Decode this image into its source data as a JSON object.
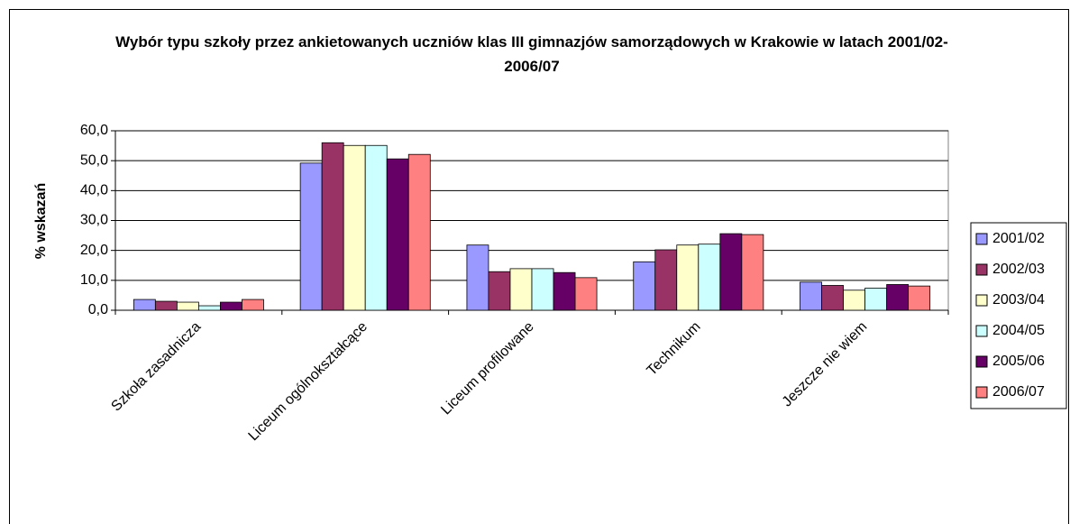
{
  "chart_data": {
    "type": "bar",
    "title": "Wybór typu szkoły przez ankietowanych uczniów klas III gimnazjów samorządowych w Krakowie w latach 2001/02-2006/07",
    "ylabel": "% wskazań",
    "categories": [
      "Szkoła zasadnicza",
      "Liceum ogólnokształcące",
      "Liceum profilowane",
      "Technikum",
      "Jeszcze nie wiem"
    ],
    "series": [
      {
        "name": "2001/02",
        "color": "#9999ff",
        "values": [
          3.6,
          49.2,
          21.8,
          16.2,
          9.4
        ]
      },
      {
        "name": "2002/03",
        "color": "#993366",
        "values": [
          3.0,
          56.0,
          12.9,
          20.2,
          8.3
        ]
      },
      {
        "name": "2003/04",
        "color": "#ffffcc",
        "values": [
          2.7,
          55.1,
          13.9,
          21.8,
          6.7
        ]
      },
      {
        "name": "2004/05",
        "color": "#ccffff",
        "values": [
          1.5,
          55.1,
          13.9,
          22.1,
          7.4
        ]
      },
      {
        "name": "2005/06",
        "color": "#660066",
        "values": [
          2.7,
          50.6,
          12.6,
          25.6,
          8.6
        ]
      },
      {
        "name": "2006/07",
        "color": "#ff8080",
        "values": [
          3.6,
          52.1,
          10.9,
          25.3,
          8.1
        ]
      }
    ],
    "ylim": [
      0,
      60
    ],
    "yticks": [
      {
        "value": 0,
        "label": "0,0"
      },
      {
        "value": 10,
        "label": "10,0"
      },
      {
        "value": 20,
        "label": "20,0"
      },
      {
        "value": 30,
        "label": "30,0"
      },
      {
        "value": 40,
        "label": "40,0"
      },
      {
        "value": 50,
        "label": "50,0"
      },
      {
        "value": 60,
        "label": "60,0"
      }
    ],
    "grid": true,
    "legend": "right"
  }
}
